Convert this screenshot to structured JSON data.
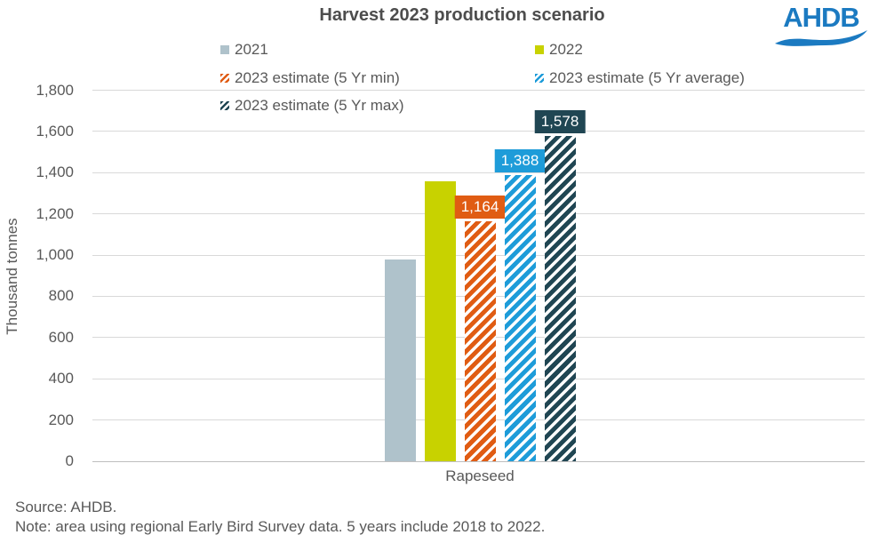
{
  "title": "Harvest 2023 production scenario",
  "logo": {
    "text": "AHDB",
    "color": "#1B7AC1"
  },
  "chart_data": {
    "type": "bar",
    "title": "Harvest 2023 production scenario",
    "categories": [
      "Rapeseed"
    ],
    "series": [
      {
        "name": "2021",
        "value": 980,
        "color": "#AFC2CB",
        "hatch": false,
        "label": null
      },
      {
        "name": "2022",
        "value": 1360,
        "color": "#C8D200",
        "hatch": false,
        "label": null
      },
      {
        "name": "2023 estimate (5 Yr min)",
        "value": 1164,
        "color": "#E05C13",
        "hatch": true,
        "label": "1,164"
      },
      {
        "name": "2023 estimate (5 Yr average)",
        "value": 1388,
        "color": "#1E9CD9",
        "hatch": true,
        "label": "1,388"
      },
      {
        "name": "2023 estimate (5 Yr max)",
        "value": 1578,
        "color": "#204653",
        "hatch": true,
        "label": "1,578"
      }
    ],
    "xlabel": "",
    "ylabel": "Thousand tonnes",
    "ylim": [
      0,
      1800
    ],
    "ytick_step": 200,
    "yticks": [
      "0",
      "200",
      "400",
      "600",
      "800",
      "1,000",
      "1,200",
      "1,400",
      "1,600",
      "1,800"
    ],
    "grid": true,
    "legend_position": "top"
  },
  "footer": {
    "source": "Source: AHDB.",
    "note": "Note: area using regional Early Bird Survey data. 5 years include 2018 to 2022."
  },
  "text_color": "#595959"
}
